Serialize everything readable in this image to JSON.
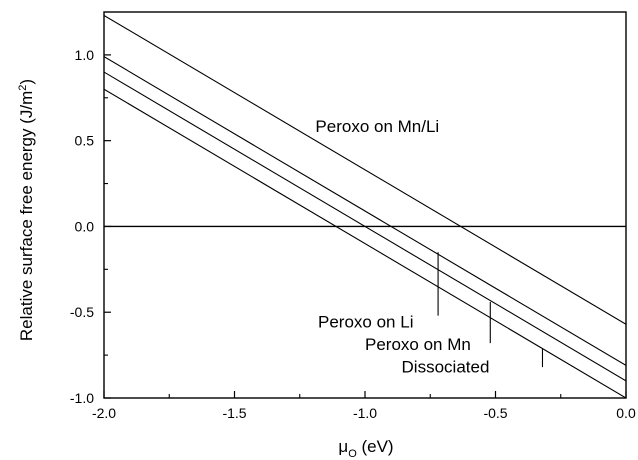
{
  "chart_data": {
    "type": "line",
    "xlabel": "μ",
    "xlabel_sub": "O",
    "xlabel_unit": " (eV)",
    "ylabel": "Relative surface free energy (J/m",
    "ylabel_sup": "2",
    "ylabel_end": ")",
    "xlim": [
      -2.0,
      0.0
    ],
    "ylim": [
      -1.0,
      1.25
    ],
    "x_ticks": [
      -2.0,
      -1.5,
      -1.0,
      -0.5,
      0.0
    ],
    "x_tick_labels": [
      "-2.0",
      "-1.5",
      "-1.0",
      "-0.5",
      "0.0"
    ],
    "y_ticks": [
      -1.0,
      -0.5,
      0.0,
      0.5,
      1.0
    ],
    "y_tick_labels": [
      "-1.0",
      "-0.5",
      "0.0",
      "0.5",
      "1.0"
    ],
    "grid": false,
    "legend": "none",
    "reference_line_y": 0.0,
    "series": [
      {
        "name": "Peroxo on Mn/Li",
        "x": [
          -2.0,
          0.0
        ],
        "y": [
          1.23,
          -0.57
        ]
      },
      {
        "name": "Peroxo on Li",
        "x": [
          -2.0,
          0.0
        ],
        "y": [
          0.99,
          -0.81
        ]
      },
      {
        "name": "Peroxo on Mn",
        "x": [
          -2.0,
          0.0
        ],
        "y": [
          0.9,
          -0.9
        ]
      },
      {
        "name": "Dissociated",
        "x": [
          -2.0,
          0.0
        ],
        "y": [
          0.8,
          -1.0
        ]
      }
    ],
    "annotations": [
      {
        "text": "Peroxo on Mn/Li",
        "x": -1.19,
        "y": 0.55,
        "pointer": null
      },
      {
        "text": "Peroxo on Li",
        "x": -1.18,
        "y": -0.59,
        "pointer": {
          "x": -0.72,
          "y0": -0.15,
          "y1": -0.52
        }
      },
      {
        "text": "Peroxo on Mn",
        "x": -1.0,
        "y": -0.72,
        "pointer": {
          "x": -0.52,
          "y0": -0.44,
          "y1": -0.68
        }
      },
      {
        "text": "Dissociated",
        "x": -0.86,
        "y": -0.85,
        "pointer": {
          "x": -0.32,
          "y0": -0.71,
          "y1": -0.82
        }
      }
    ]
  }
}
